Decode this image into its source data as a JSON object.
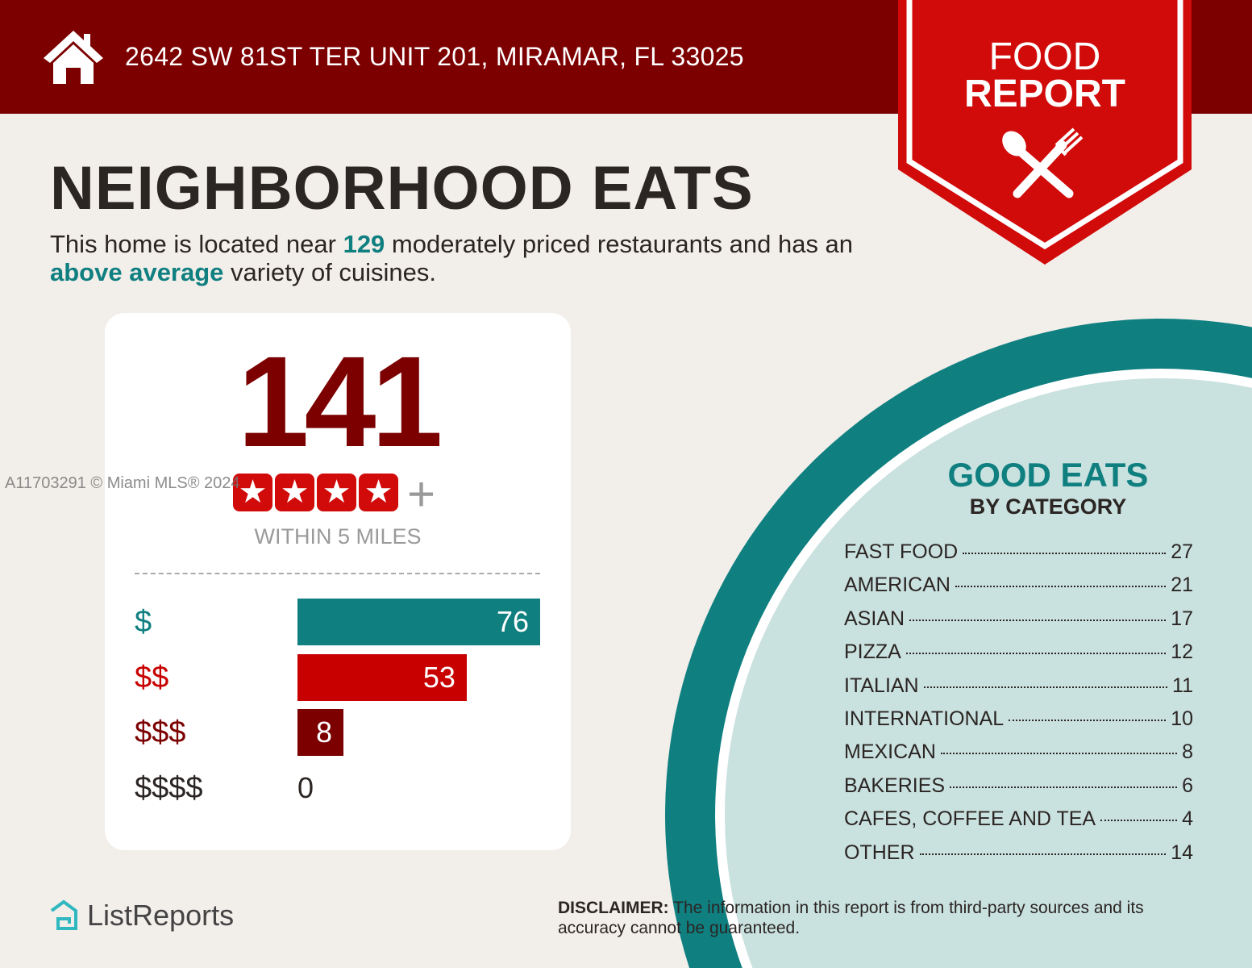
{
  "header": {
    "address": "2642 SW 81ST TER UNIT 201, MIRAMAR, FL 33025",
    "icon": "home-icon"
  },
  "badge": {
    "line1": "FOOD",
    "line2": "REPORT",
    "icon": "cutlery-icon"
  },
  "headline": "NEIGHBORHOOD EATS",
  "intro": {
    "pre": "This home is located near ",
    "count": "129",
    "mid": " moderately priced restaurants and has an ",
    "variety": "above average",
    "post": " variety of cuisines."
  },
  "summary": {
    "total": "141",
    "stars": 4,
    "plus": "+",
    "within": "WITHIN 5 MILES"
  },
  "price_tiers": [
    {
      "label": "$",
      "value": 76,
      "color": "#0f7f80",
      "label_color": "#0f7f80",
      "text": "76"
    },
    {
      "label": "$$",
      "value": 53,
      "color": "#c80000",
      "label_color": "#c80000",
      "text": "53"
    },
    {
      "label": "$$$",
      "value": 8,
      "color": "#7c0000",
      "label_color": "#7c0000",
      "text": "8"
    },
    {
      "label": "$$$$",
      "value": 0,
      "color": "#2b2523",
      "label_color": "#2b2523",
      "text": "0"
    }
  ],
  "good_eats": {
    "title": "GOOD EATS",
    "subtitle": "BY CATEGORY",
    "categories": [
      {
        "name": "FAST FOOD",
        "count": "27"
      },
      {
        "name": "AMERICAN",
        "count": "21"
      },
      {
        "name": "ASIAN",
        "count": "17"
      },
      {
        "name": "PIZZA",
        "count": "12"
      },
      {
        "name": "ITALIAN",
        "count": "11"
      },
      {
        "name": "INTERNATIONAL",
        "count": "10"
      },
      {
        "name": "MEXICAN",
        "count": "8"
      },
      {
        "name": "BAKERIES",
        "count": "6"
      },
      {
        "name": "CAFES, COFFEE AND TEA",
        "count": "4"
      },
      {
        "name": "OTHER",
        "count": "14"
      }
    ]
  },
  "watermark": "A11703291 © Miami MLS® 2024",
  "footer": {
    "logo": "ListReports",
    "disclaimer_label": "DISCLAIMER:",
    "disclaimer_text": " The information in this report is from third-party sources and its accuracy cannot be guaranteed."
  },
  "colors": {
    "header": "#7c0000",
    "badge": "#d10a0a",
    "teal": "#0f7f80",
    "light_teal": "#c9e1df",
    "background": "#f2eeea"
  }
}
